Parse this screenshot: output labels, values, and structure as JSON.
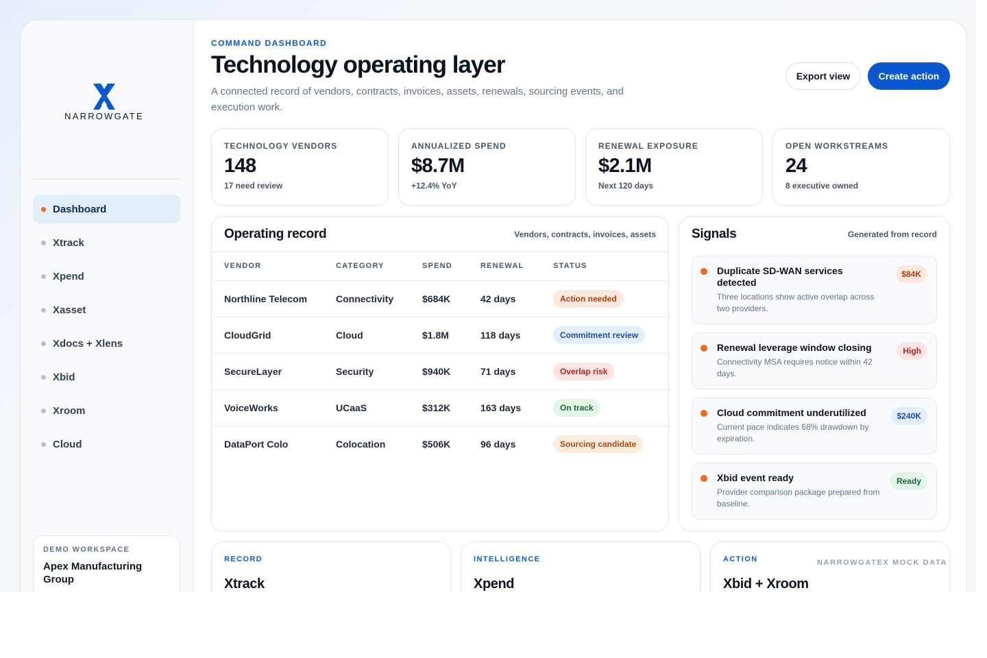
{
  "brand": {
    "name": "NARROWGATE",
    "logo": "narrowgate-x-logo"
  },
  "nav": {
    "items": [
      {
        "label": "Dashboard",
        "active": true
      },
      {
        "label": "Xtrack",
        "active": false
      },
      {
        "label": "Xpend",
        "active": false
      },
      {
        "label": "Xasset",
        "active": false
      },
      {
        "label": "Xdocs + Xlens",
        "active": false
      },
      {
        "label": "Xbid",
        "active": false
      },
      {
        "label": "Xroom",
        "active": false
      },
      {
        "label": "Cloud",
        "active": false
      }
    ]
  },
  "workspace": {
    "kicker": "DEMO WORKSPACE",
    "name": "Apex Manufacturing Group"
  },
  "header": {
    "kicker": "COMMAND DASHBOARD",
    "title": "Technology operating layer",
    "subtitle": "A connected record of vendors, contracts, invoices, assets, renewals, sourcing events, and execution work.",
    "export_label": "Export view",
    "create_label": "Create action"
  },
  "kpis": [
    {
      "label": "TECHNOLOGY VENDORS",
      "value": "148",
      "note": "17 need review"
    },
    {
      "label": "ANNUALIZED SPEND",
      "value": "$8.7M",
      "note": "+12.4% YoY"
    },
    {
      "label": "RENEWAL EXPOSURE",
      "value": "$2.1M",
      "note": "Next 120 days"
    },
    {
      "label": "OPEN WORKSTREAMS",
      "value": "24",
      "note": "8 executive owned"
    }
  ],
  "record": {
    "title": "Operating record",
    "meta": "Vendors, contracts, invoices, assets",
    "columns": [
      "VENDOR",
      "CATEGORY",
      "SPEND",
      "RENEWAL",
      "STATUS"
    ],
    "rows": [
      {
        "vendor": "Northline Telecom",
        "category": "Connectivity",
        "spend": "$684K",
        "renewal": "42 days",
        "status": "Action needed",
        "tone": "orange"
      },
      {
        "vendor": "CloudGrid",
        "category": "Cloud",
        "spend": "$1.8M",
        "renewal": "118 days",
        "status": "Commitment review",
        "tone": "blue"
      },
      {
        "vendor": "SecureLayer",
        "category": "Security",
        "spend": "$940K",
        "renewal": "71 days",
        "status": "Overlap risk",
        "tone": "red"
      },
      {
        "vendor": "VoiceWorks",
        "category": "UCaaS",
        "spend": "$312K",
        "renewal": "163 days",
        "status": "On track",
        "tone": "green"
      },
      {
        "vendor": "DataPort Colo",
        "category": "Colocation",
        "spend": "$506K",
        "renewal": "96 days",
        "status": "Sourcing candidate",
        "tone": "amber"
      }
    ]
  },
  "signals": {
    "title": "Signals",
    "meta": "Generated from record",
    "items": [
      {
        "title": "Duplicate SD-WAN services detected",
        "desc": "Three locations show active overlap across two providers.",
        "tag": "$84K",
        "tone": "orange"
      },
      {
        "title": "Renewal leverage window closing",
        "desc": "Connectivity MSA requires notice within 42 days.",
        "tag": "High",
        "tone": "red"
      },
      {
        "title": "Cloud commitment underutilized",
        "desc": "Current pace indicates 68% drawdown by expiration.",
        "tag": "$240K",
        "tone": "blue"
      },
      {
        "title": "Xbid event ready",
        "desc": "Provider comparison package prepared from baseline.",
        "tag": "Ready",
        "tone": "green"
      }
    ]
  },
  "modules": [
    {
      "kicker": "RECORD",
      "title": "Xtrack"
    },
    {
      "kicker": "INTELLIGENCE",
      "title": "Xpend"
    },
    {
      "kicker": "ACTION",
      "title": "Xbid + Xroom"
    }
  ],
  "watermark": "NARROWGATEX MOCK DATA",
  "colors": {
    "accent": "#0b57d0",
    "active_dot": "#f26b1d",
    "kicker": "#0b5bd3"
  }
}
